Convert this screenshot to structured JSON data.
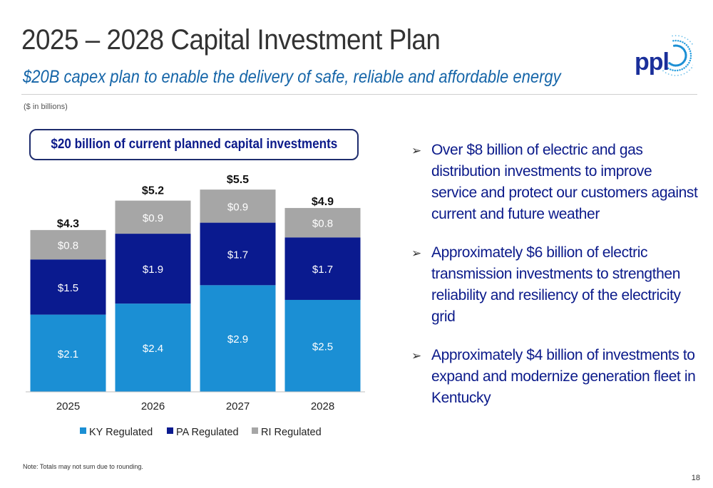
{
  "header": {
    "title": "2025 – 2028 Capital Investment Plan",
    "subtitle": "$20B capex plan to enable the delivery of safe, reliable and affordable energy",
    "logo_text": "ppl"
  },
  "units_note": "($ in billions)",
  "callout": "$20 billion of current planned capital investments",
  "chart_data": {
    "type": "bar",
    "stacked": true,
    "categories": [
      "2025",
      "2026",
      "2027",
      "2028"
    ],
    "series": [
      {
        "name": "KY Regulated",
        "values": [
          2.1,
          2.4,
          2.9,
          2.5
        ],
        "labels": [
          "$2.1",
          "$2.4",
          "$2.9",
          "$2.5"
        ],
        "color": "#1b8fd4",
        "label_color": "#ffffff"
      },
      {
        "name": "PA Regulated",
        "values": [
          1.5,
          1.9,
          1.7,
          1.7
        ],
        "labels": [
          "$1.5",
          "$1.9",
          "$1.7",
          "$1.7"
        ],
        "color": "#0a1a8f",
        "label_color": "#ffffff"
      },
      {
        "name": "RI Regulated",
        "values": [
          0.8,
          0.9,
          0.9,
          0.8
        ],
        "labels": [
          "$0.8",
          "$0.9",
          "$0.9",
          "$0.8"
        ],
        "color": "#a6a6a6",
        "label_color": "#ffffff"
      }
    ],
    "totals": [
      4.3,
      5.2,
      5.5,
      4.9
    ],
    "total_labels": [
      "$4.3",
      "$5.2",
      "$5.5",
      "$4.9"
    ],
    "ylim": [
      0,
      6.2
    ],
    "grid": false,
    "legend": "bottom"
  },
  "bullets": [
    "Over $8 billion of electric and gas distribution investments to improve service and protect our customers against current and future weather",
    "Approximately $6 billion of electric transmission investments to strengthen reliability and resiliency of the electricity grid",
    "Approximately $4 billion of investments to expand and modernize generation fleet in Kentucky"
  ],
  "footer": {
    "note": "Note: Totals may not sum due to rounding.",
    "page_number": "18"
  }
}
